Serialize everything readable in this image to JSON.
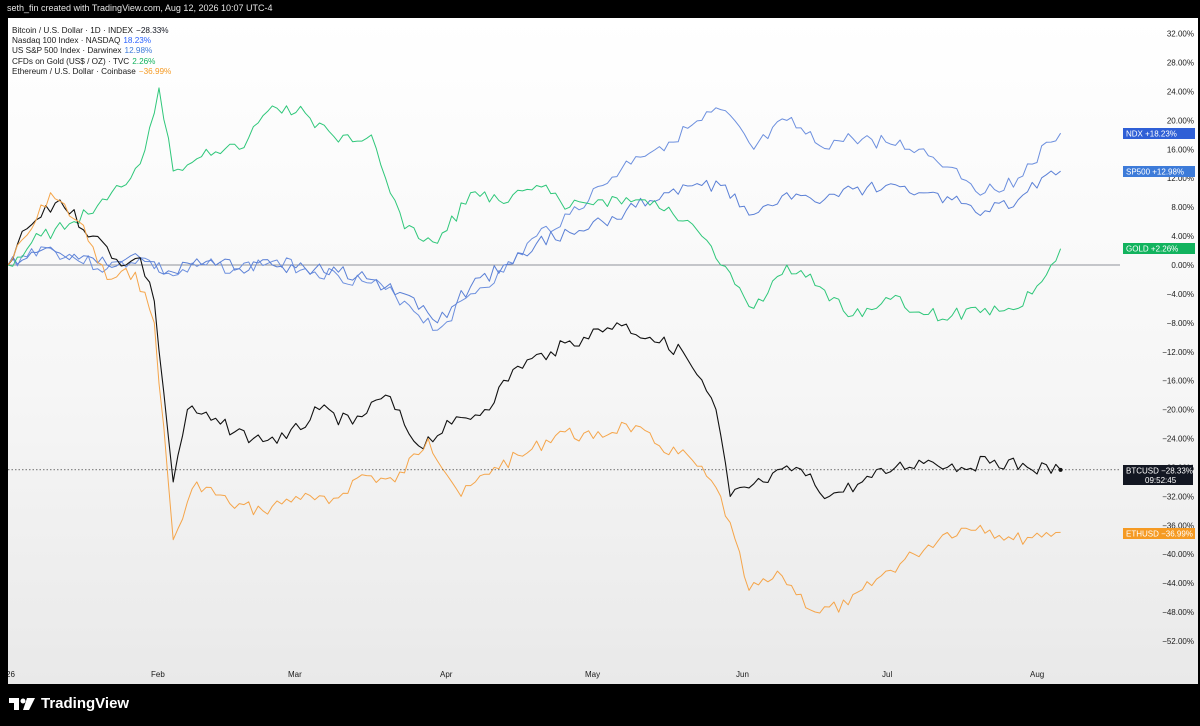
{
  "header": {
    "caption": "seth_fin created with TradingView.com, Aug 12, 2026 10:07 UTC-4"
  },
  "legend": [
    {
      "label": "Bitcoin / U.S. Dollar · 1D · INDEX",
      "value": "−28.33%",
      "color": "#131722"
    },
    {
      "label": "Nasdaq 100 Index · NASDAQ",
      "value": "18.23%",
      "color": "#2962ff"
    },
    {
      "label": "US S&P 500 Index · Darwinex",
      "value": "12.98%",
      "color": "#3d7bd9"
    },
    {
      "label": "CFDs on Gold (US$ / OZ) · TVC",
      "value": "2.26%",
      "color": "#12b35e"
    },
    {
      "label": "Ethereum / U.S. Dollar · Coinbase",
      "value": "−36.99%",
      "color": "#f59a23"
    }
  ],
  "footer": {
    "brand": "TradingView"
  },
  "chart_data": {
    "type": "line",
    "y_unit": "%",
    "ylim": [
      -54,
      34
    ],
    "y_ticks": [
      "32.00%",
      "28.00%",
      "24.00%",
      "20.00%",
      "16.00%",
      "12.00%",
      "8.00%",
      "4.00%",
      "0.00%",
      "−4.00%",
      "−8.00%",
      "−12.00%",
      "−16.00%",
      "−20.00%",
      "−24.00%",
      "−28.00%",
      "−32.00%",
      "−36.00%",
      "−40.00%",
      "−44.00%",
      "−48.00%",
      "−52.00%"
    ],
    "x_labels": [
      "26",
      "Feb",
      "Mar",
      "Apr",
      "May",
      "Jun",
      "Jul",
      "Aug"
    ],
    "baseline": 0,
    "series": [
      {
        "name": "NDX",
        "color": "#6c8fde",
        "tag_color": "#2f5fd6",
        "last_label": "+18.23%",
        "points": [
          [
            "Jan 1",
            0
          ],
          [
            "Jan 8",
            2.5
          ],
          [
            "Jan 15",
            1
          ],
          [
            "Jan 22",
            -0.5
          ],
          [
            "Jan 29",
            1
          ],
          [
            "Feb 5",
            -1.5
          ],
          [
            "Feb 12",
            0
          ],
          [
            "Feb 19",
            -0.5
          ],
          [
            "Feb 26",
            0.5
          ],
          [
            "Mar 5",
            -0.5
          ],
          [
            "Mar 12",
            -1.5
          ],
          [
            "Mar 19",
            -2.5
          ],
          [
            "Mar 26",
            -5
          ],
          [
            "Apr 2",
            -9
          ],
          [
            "Apr 9",
            -4
          ],
          [
            "Apr 16",
            -1
          ],
          [
            "Apr 23",
            4
          ],
          [
            "Apr 30",
            7
          ],
          [
            "May 7",
            11
          ],
          [
            "May 14",
            15
          ],
          [
            "May 21",
            17
          ],
          [
            "May 28",
            20
          ],
          [
            "Jun 1",
            21.5
          ],
          [
            "Jun 8",
            16
          ],
          [
            "Jun 15",
            20
          ],
          [
            "Jun 22",
            16.5
          ],
          [
            "Jun 29",
            17.5
          ],
          [
            "Jul 6",
            17
          ],
          [
            "Jul 13",
            16
          ],
          [
            "Jul 20",
            13.5
          ],
          [
            "Jul 27",
            10
          ],
          [
            "Aug 3",
            12
          ],
          [
            "Aug 10",
            17
          ],
          [
            "Aug 12",
            18.23
          ]
        ]
      },
      {
        "name": "SP500",
        "color": "#5b80d6",
        "tag_color": "#3d7bd9",
        "last_label": "+12.98%",
        "points": [
          [
            "Jan 1",
            0
          ],
          [
            "Jan 8",
            2
          ],
          [
            "Jan 15",
            1.5
          ],
          [
            "Jan 22",
            0
          ],
          [
            "Jan 29",
            1
          ],
          [
            "Feb 5",
            -1
          ],
          [
            "Feb 12",
            0.5
          ],
          [
            "Feb 19",
            -0.5
          ],
          [
            "Feb 26",
            0
          ],
          [
            "Mar 5",
            -0.5
          ],
          [
            "Mar 12",
            -1
          ],
          [
            "Mar 19",
            -2
          ],
          [
            "Mar 26",
            -4
          ],
          [
            "Apr 2",
            -8
          ],
          [
            "Apr 9",
            -3
          ],
          [
            "Apr 16",
            0
          ],
          [
            "Apr 23",
            3
          ],
          [
            "Apr 30",
            4.5
          ],
          [
            "May 7",
            6
          ],
          [
            "May 14",
            8
          ],
          [
            "May 21",
            10
          ],
          [
            "May 28",
            11
          ],
          [
            "Jun 1",
            11
          ],
          [
            "Jun 8",
            7
          ],
          [
            "Jun 15",
            10
          ],
          [
            "Jun 22",
            8.5
          ],
          [
            "Jun 29",
            10.5
          ],
          [
            "Jul 6",
            11
          ],
          [
            "Jul 13",
            10
          ],
          [
            "Jul 20",
            9
          ],
          [
            "Jul 27",
            7.5
          ],
          [
            "Aug 3",
            9
          ],
          [
            "Aug 10",
            13
          ],
          [
            "Aug 12",
            12.98
          ]
        ]
      },
      {
        "name": "GOLD",
        "color": "#2fc77a",
        "tag_color": "#12b35e",
        "last_label": "+2.26%",
        "points": [
          [
            "Jan 1",
            0
          ],
          [
            "Jan 8",
            4
          ],
          [
            "Jan 15",
            6
          ],
          [
            "Jan 22",
            9
          ],
          [
            "Jan 29",
            14
          ],
          [
            "Feb 2",
            24.5
          ],
          [
            "Feb 5",
            13
          ],
          [
            "Feb 12",
            16
          ],
          [
            "Feb 19",
            16
          ],
          [
            "Feb 26",
            22
          ],
          [
            "Mar 5",
            21
          ],
          [
            "Mar 12",
            17
          ],
          [
            "Mar 19",
            18
          ],
          [
            "Mar 26",
            5
          ],
          [
            "Apr 2",
            3
          ],
          [
            "Apr 9",
            10
          ],
          [
            "Apr 16",
            8.5
          ],
          [
            "Apr 23",
            11
          ],
          [
            "Apr 30",
            8
          ],
          [
            "May 7",
            9
          ],
          [
            "May 14",
            9
          ],
          [
            "May 21",
            8
          ],
          [
            "May 28",
            4
          ],
          [
            "Jun 1",
            0
          ],
          [
            "Jun 8",
            -6
          ],
          [
            "Jun 15",
            0
          ],
          [
            "Jun 22",
            -3
          ],
          [
            "Jun 29",
            -7
          ],
          [
            "Jul 6",
            -4.5
          ],
          [
            "Jul 13",
            -6.5
          ],
          [
            "Jul 20",
            -7
          ],
          [
            "Jul 27",
            -6
          ],
          [
            "Aug 3",
            -6
          ],
          [
            "Aug 10",
            0
          ],
          [
            "Aug 12",
            2.26
          ]
        ]
      },
      {
        "name": "BTCUSD",
        "color": "#111111",
        "tag_color": "#131722",
        "last_label": "−28.33%",
        "points": [
          [
            "Jan 1",
            0
          ],
          [
            "Jan 5",
            5
          ],
          [
            "Jan 12",
            9
          ],
          [
            "Jan 19",
            4
          ],
          [
            "Jan 26",
            0
          ],
          [
            "Jan 29",
            1
          ],
          [
            "Feb 1",
            -5
          ],
          [
            "Feb 5",
            -30
          ],
          [
            "Feb 8",
            -20
          ],
          [
            "Feb 15",
            -22
          ],
          [
            "Feb 22",
            -24
          ],
          [
            "Mar 1",
            -24
          ],
          [
            "Mar 8",
            -20
          ],
          [
            "Mar 15",
            -22
          ],
          [
            "Mar 22",
            -18
          ],
          [
            "Mar 29",
            -25
          ],
          [
            "Apr 5",
            -22
          ],
          [
            "Apr 12",
            -20
          ],
          [
            "Apr 19",
            -14
          ],
          [
            "Apr 26",
            -12
          ],
          [
            "May 3",
            -10
          ],
          [
            "May 10",
            -8
          ],
          [
            "May 17",
            -10
          ],
          [
            "May 24",
            -12
          ],
          [
            "May 31",
            -20
          ],
          [
            "Jun 3",
            -32
          ],
          [
            "Jun 10",
            -30
          ],
          [
            "Jun 17",
            -28
          ],
          [
            "Jun 24",
            -32
          ],
          [
            "Jul 1",
            -30
          ],
          [
            "Jul 8",
            -28
          ],
          [
            "Jul 15",
            -27
          ],
          [
            "Jul 22",
            -28
          ],
          [
            "Jul 29",
            -27
          ],
          [
            "Aug 5",
            -28
          ],
          [
            "Aug 12",
            -28.33
          ]
        ]
      },
      {
        "name": "ETHUSD",
        "color": "#f5a54a",
        "tag_color": "#f59a23",
        "last_label": "−36.99%",
        "points": [
          [
            "Jan 1",
            0
          ],
          [
            "Jan 6",
            5
          ],
          [
            "Jan 10",
            10
          ],
          [
            "Jan 16",
            6
          ],
          [
            "Jan 22",
            -2
          ],
          [
            "Jan 28",
            -1
          ],
          [
            "Feb 1",
            -8
          ],
          [
            "Feb 5",
            -38
          ],
          [
            "Feb 10",
            -30
          ],
          [
            "Feb 17",
            -33
          ],
          [
            "Feb 24",
            -34
          ],
          [
            "Mar 3",
            -32
          ],
          [
            "Mar 10",
            -33
          ],
          [
            "Mar 17",
            -29
          ],
          [
            "Mar 24",
            -30
          ],
          [
            "Mar 31",
            -24
          ],
          [
            "Apr 7",
            -32
          ],
          [
            "Apr 14",
            -28
          ],
          [
            "Apr 21",
            -26
          ],
          [
            "Apr 28",
            -23
          ],
          [
            "May 5",
            -24
          ],
          [
            "May 12",
            -22
          ],
          [
            "May 19",
            -25
          ],
          [
            "May 26",
            -27
          ],
          [
            "Jun 1",
            -32
          ],
          [
            "Jun 7",
            -45
          ],
          [
            "Jun 14",
            -43
          ],
          [
            "Jun 21",
            -48
          ],
          [
            "Jun 28",
            -47
          ],
          [
            "Jul 5",
            -43
          ],
          [
            "Jul 12",
            -40
          ],
          [
            "Jul 19",
            -37
          ],
          [
            "Jul 26",
            -36
          ],
          [
            "Aug 2",
            -38
          ],
          [
            "Aug 9",
            -37
          ],
          [
            "Aug 12",
            -36.99
          ]
        ]
      }
    ],
    "price_labels": [
      {
        "series": "BTCUSD",
        "extra": "09:52:45"
      }
    ]
  }
}
